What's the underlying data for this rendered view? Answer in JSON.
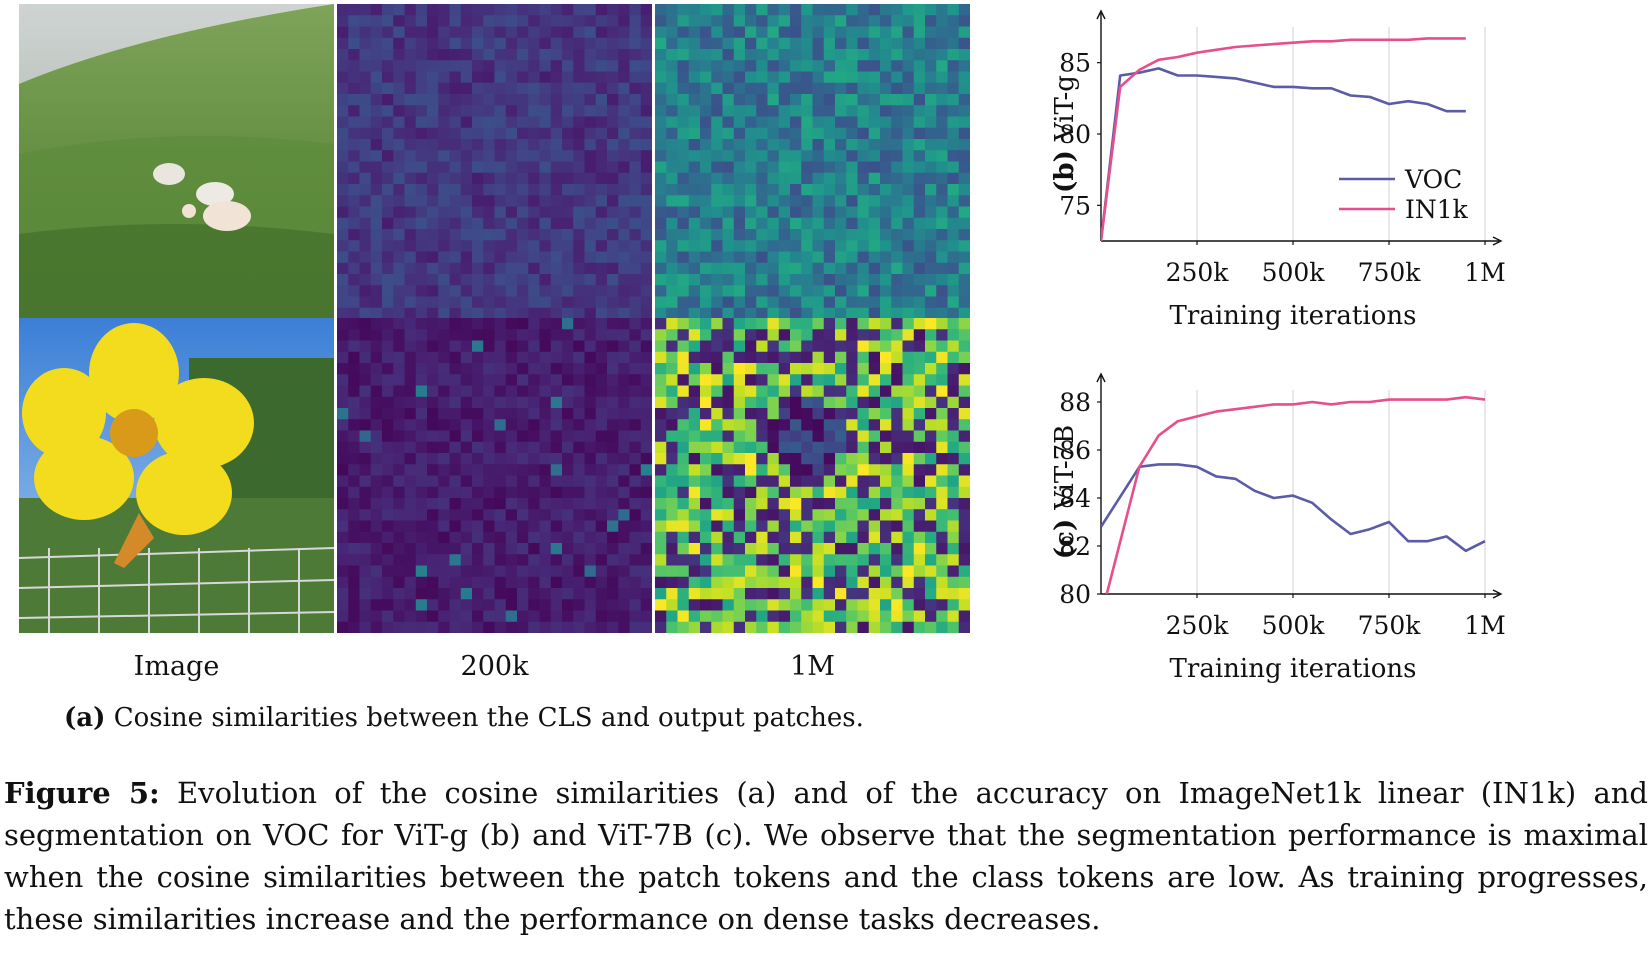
{
  "panel_a": {
    "column_labels": [
      "Image",
      "200k",
      "1M"
    ],
    "rows": [
      "sheep",
      "flower"
    ],
    "subcaption_label": "(a)",
    "subcaption_text": "Cosine similarities between the CLS and output patches."
  },
  "figure_caption": {
    "label": "Figure 5:",
    "text": "Evolution of the cosine similarities (a) and of the accuracy on ImageNet1k linear (IN1k) and segmentation on VOC for ViT-g (b) and ViT-7B (c). We observe that the segmentation performance is maximal when the cosine similarities between the patch tokens and the class tokens are low. As training progresses, these similarities increase and the performance on dense tasks decreases."
  },
  "colors": {
    "voc": "#5b5ba8",
    "in1k": "#e64f8a"
  },
  "chart_data": [
    {
      "type": "line",
      "ylabel_prefix": "(b)",
      "ylabel": "ViT-g",
      "xlabel": "Training iterations",
      "xlim": [
        0,
        1000000
      ],
      "ylim": [
        72.5,
        87.5
      ],
      "xticks": [
        250000,
        500000,
        750000,
        1000000
      ],
      "xtick_labels": [
        "250k",
        "500k",
        "750k",
        "1M"
      ],
      "yticks": [
        75,
        80,
        85
      ],
      "ytick_labels": [
        "75",
        "80",
        "85"
      ],
      "grid": "x",
      "legend": "right",
      "series": [
        {
          "name": "VOC",
          "color": "#5b5ba8",
          "x": [
            0,
            50000,
            100000,
            150000,
            200000,
            250000,
            300000,
            350000,
            400000,
            450000,
            500000,
            550000,
            600000,
            650000,
            700000,
            750000,
            800000,
            850000,
            900000,
            950000
          ],
          "y": [
            72.5,
            84.1,
            84.3,
            84.6,
            84.1,
            84.1,
            84.0,
            83.9,
            83.6,
            83.3,
            83.3,
            83.2,
            83.2,
            82.7,
            82.6,
            82.1,
            82.3,
            82.1,
            81.6,
            81.6
          ]
        },
        {
          "name": "IN1k",
          "color": "#e64f8a",
          "x": [
            0,
            50000,
            100000,
            150000,
            200000,
            250000,
            300000,
            350000,
            400000,
            450000,
            500000,
            550000,
            600000,
            650000,
            700000,
            750000,
            800000,
            850000,
            900000,
            950000
          ],
          "y": [
            72.5,
            83.3,
            84.5,
            85.2,
            85.4,
            85.7,
            85.9,
            86.1,
            86.2,
            86.3,
            86.4,
            86.5,
            86.5,
            86.6,
            86.6,
            86.6,
            86.6,
            86.7,
            86.7,
            86.7
          ]
        }
      ]
    },
    {
      "type": "line",
      "ylabel_prefix": "(c)",
      "ylabel": "ViT-7B",
      "xlabel": "Training iterations",
      "xlim": [
        0,
        1000000
      ],
      "ylim": [
        80,
        88.5
      ],
      "xticks": [
        250000,
        500000,
        750000,
        1000000
      ],
      "xtick_labels": [
        "250k",
        "500k",
        "750k",
        "1M"
      ],
      "yticks": [
        80,
        82,
        84,
        86,
        88
      ],
      "ytick_labels": [
        "80",
        "82",
        "84",
        "86",
        "88"
      ],
      "grid": "x",
      "series": [
        {
          "name": "VOC",
          "color": "#5b5ba8",
          "x": [
            0,
            100000,
            150000,
            200000,
            250000,
            300000,
            350000,
            400000,
            450000,
            500000,
            550000,
            600000,
            650000,
            700000,
            750000,
            800000,
            850000,
            900000,
            950000,
            1000000
          ],
          "y": [
            82.8,
            85.3,
            85.4,
            85.4,
            85.3,
            84.9,
            84.8,
            84.3,
            84.0,
            84.1,
            83.8,
            83.1,
            82.5,
            82.7,
            83.0,
            82.2,
            82.2,
            82.4,
            81.8,
            82.2
          ]
        },
        {
          "name": "IN1k",
          "color": "#e64f8a",
          "x": [
            15000,
            100000,
            150000,
            200000,
            250000,
            300000,
            350000,
            400000,
            450000,
            500000,
            550000,
            600000,
            650000,
            700000,
            750000,
            800000,
            850000,
            900000,
            950000,
            1000000
          ],
          "y": [
            80.0,
            85.3,
            86.6,
            87.2,
            87.4,
            87.6,
            87.7,
            87.8,
            87.9,
            87.9,
            88.0,
            87.9,
            88.0,
            88.0,
            88.1,
            88.1,
            88.1,
            88.1,
            88.2,
            88.1
          ]
        }
      ]
    }
  ]
}
